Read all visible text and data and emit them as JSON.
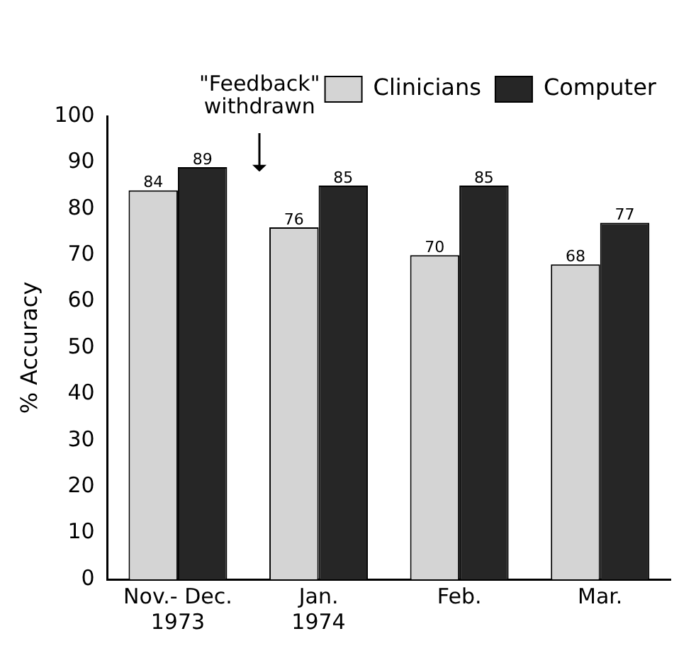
{
  "chart_data": {
    "type": "bar",
    "ylabel": "% Accuracy",
    "categories": [
      "Nov.- Dec.\n1973",
      "Jan.\n1974",
      "Feb.",
      "Mar."
    ],
    "series": [
      {
        "name": "Clinicians",
        "color": "#d4d4d4",
        "values": [
          84,
          76,
          70,
          68
        ]
      },
      {
        "name": "Computer",
        "color": "#262626",
        "values": [
          89,
          85,
          85,
          77
        ]
      }
    ],
    "ylim": [
      0,
      100
    ],
    "yticks": [
      0,
      10,
      20,
      30,
      40,
      50,
      60,
      70,
      80,
      90,
      100
    ],
    "grid": false,
    "legend": "top right",
    "data_labels": true,
    "annotations": [
      "\"Feedback\"\nwithdrawn"
    ]
  }
}
